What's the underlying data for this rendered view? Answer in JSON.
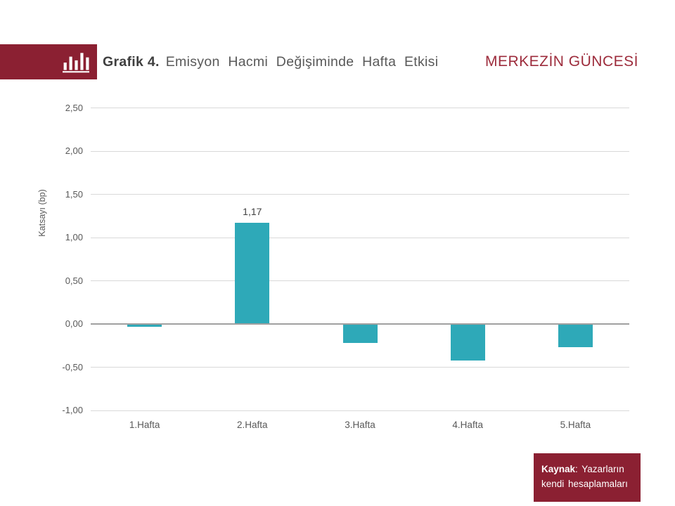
{
  "header": {
    "logo_icon": "bar-chart-icon",
    "title_prefix": "Grafik 4.",
    "title_rest": "Emisyon Hacmi Değişiminde Hafta Etkisi",
    "brand": "MERKEZİN GÜNCESİ"
  },
  "chart_data": {
    "type": "bar",
    "title": "Grafik 4. Emisyon Hacmi Değişiminde Hafta Etkisi",
    "categories": [
      "1.Hafta",
      "2.Hafta",
      "3.Hafta",
      "4.Hafta",
      "5.Hafta"
    ],
    "values": [
      -0.03,
      1.17,
      -0.22,
      -0.42,
      -0.27
    ],
    "value_labels": [
      "",
      "1,17",
      "",
      "",
      ""
    ],
    "xlabel": "",
    "ylabel": "Katsayı (bp)",
    "ylim": [
      -1.0,
      2.5
    ],
    "ytick_step": 0.5,
    "yticks": [
      "2,50",
      "2,00",
      "1,50",
      "1,00",
      "0,50",
      "0,00",
      "-0,50",
      "-1,00"
    ],
    "grid": true,
    "legend_position": "none",
    "bar_color": "#2EA9B8"
  },
  "source": {
    "label": "Kaynak",
    "text": ": Yazarların kendi hesaplamaları"
  },
  "colors": {
    "maroon": "#8B2032",
    "brand_red": "#9D2C3C",
    "bar_teal": "#2EA9B8",
    "gridline": "#D9D9D9",
    "zero_axis": "#A0A0A0",
    "title_dark": "#3F3F3F",
    "text_gray": "#595959"
  }
}
